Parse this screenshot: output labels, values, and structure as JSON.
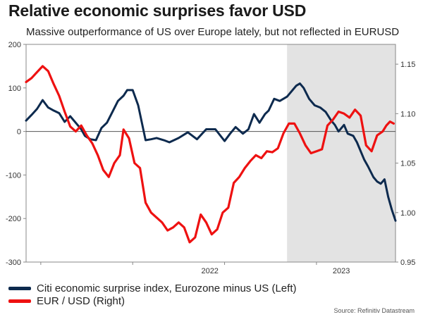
{
  "header": {
    "title": "Relative economic surprises favor USD",
    "subtitle": "Massive outperformance of US over Europe lately, but not reflected in EURUSD"
  },
  "source": "Source: Refinitiv Datastream",
  "legend": [
    {
      "label": "Citi economic surprise index, Eurozone minus US (Left)",
      "color": "#0d2a4e"
    },
    {
      "label": "EUR / USD (Right)",
      "color": "#ee1111"
    }
  ],
  "chart_data": {
    "type": "line",
    "title": "Relative economic surprises favor USD",
    "x_range": [
      2021.42,
      2023.43
    ],
    "x_ticks": [
      2022,
      2023
    ],
    "x_tick_labels": [
      "2022",
      "2023"
    ],
    "x_tick_marks": [
      2021.5,
      2022.0,
      2022.5,
      2023.0
    ],
    "shaded_region": {
      "from": 2022.84,
      "to": 2023.43,
      "color": "#e3e3e3"
    },
    "zero_line": {
      "axis": "left",
      "value": 0
    },
    "y_left": {
      "range": [
        -300,
        200
      ],
      "ticks": [
        -300,
        -200,
        -100,
        0,
        100,
        200
      ],
      "tick_labels": [
        "-300",
        "-200",
        "-100",
        "0",
        "100",
        "200"
      ]
    },
    "y_right": {
      "range": [
        0.95,
        1.17
      ],
      "ticks": [
        0.95,
        1.0,
        1.05,
        1.1,
        1.15
      ],
      "tick_labels": [
        "0.95",
        "1.00",
        "1.05",
        "1.10",
        "1.15"
      ]
    },
    "series": [
      {
        "name": "Citi economic surprise index, Eurozone minus US (Left)",
        "axis": "left",
        "color": "#0d2a4e",
        "x": [
          2021.42,
          2021.45,
          2021.48,
          2021.51,
          2021.54,
          2021.57,
          2021.6,
          2021.63,
          2021.66,
          2021.7,
          2021.72,
          2021.74,
          2021.77,
          2021.8,
          2021.83,
          2021.86,
          2021.89,
          2021.92,
          2021.95,
          2021.97,
          2022.0,
          2022.03,
          2022.07,
          2022.1,
          2022.13,
          2022.17,
          2022.2,
          2022.25,
          2022.3,
          2022.35,
          2022.4,
          2022.45,
          2022.5,
          2022.53,
          2022.56,
          2022.6,
          2022.63,
          2022.66,
          2022.69,
          2022.72,
          2022.74,
          2022.77,
          2022.8,
          2022.84,
          2022.87,
          2022.89,
          2022.91,
          2022.93,
          2022.96,
          2022.99,
          2023.02,
          2023.05,
          2023.08,
          2023.1,
          2023.12,
          2023.15,
          2023.17,
          2023.2,
          2023.22,
          2023.24,
          2023.26,
          2023.28,
          2023.31,
          2023.33,
          2023.35,
          2023.37,
          2023.39,
          2023.41,
          2023.43
        ],
        "y": [
          25,
          38,
          52,
          72,
          55,
          48,
          42,
          22,
          35,
          15,
          5,
          -10,
          -18,
          -20,
          8,
          20,
          45,
          70,
          82,
          95,
          95,
          60,
          -20,
          -18,
          -15,
          -20,
          -25,
          -15,
          -2,
          -18,
          5,
          5,
          -22,
          -5,
          10,
          -5,
          5,
          40,
          20,
          40,
          48,
          75,
          70,
          80,
          95,
          105,
          110,
          100,
          75,
          60,
          55,
          45,
          25,
          15,
          0,
          15,
          -5,
          -10,
          -25,
          -45,
          -65,
          -80,
          -105,
          -115,
          -120,
          -110,
          -150,
          -180,
          -205
        ]
      },
      {
        "name": "EUR / USD (Right)",
        "axis": "right",
        "color": "#ee1111",
        "x": [
          2021.42,
          2021.45,
          2021.48,
          2021.51,
          2021.54,
          2021.57,
          2021.6,
          2021.63,
          2021.66,
          2021.69,
          2021.72,
          2021.75,
          2021.78,
          2021.81,
          2021.84,
          2021.87,
          2021.9,
          2021.93,
          2021.95,
          2021.98,
          2022.01,
          2022.04,
          2022.07,
          2022.1,
          2022.13,
          2022.16,
          2022.19,
          2022.22,
          2022.25,
          2022.28,
          2022.31,
          2022.34,
          2022.37,
          2022.4,
          2022.43,
          2022.46,
          2022.49,
          2022.52,
          2022.55,
          2022.58,
          2022.61,
          2022.64,
          2022.67,
          2022.7,
          2022.73,
          2022.76,
          2022.79,
          2022.82,
          2022.85,
          2022.88,
          2022.91,
          2022.94,
          2022.97,
          2023.0,
          2023.03,
          2023.06,
          2023.09,
          2023.12,
          2023.15,
          2023.18,
          2023.21,
          2023.24,
          2023.27,
          2023.3,
          2023.33,
          2023.36,
          2023.38,
          2023.4,
          2023.42
        ],
        "y": [
          1.132,
          1.136,
          1.142,
          1.148,
          1.143,
          1.13,
          1.118,
          1.102,
          1.087,
          1.082,
          1.088,
          1.078,
          1.07,
          1.058,
          1.043,
          1.036,
          1.05,
          1.058,
          1.084,
          1.075,
          1.05,
          1.045,
          1.01,
          1.0,
          0.995,
          0.99,
          0.982,
          0.985,
          0.99,
          0.985,
          0.97,
          0.975,
          0.998,
          0.99,
          0.978,
          0.983,
          1.0,
          1.005,
          1.03,
          1.036,
          1.045,
          1.052,
          1.058,
          1.055,
          1.062,
          1.061,
          1.065,
          1.08,
          1.09,
          1.09,
          1.08,
          1.068,
          1.06,
          1.062,
          1.064,
          1.088,
          1.094,
          1.102,
          1.1,
          1.096,
          1.104,
          1.098,
          1.068,
          1.062,
          1.078,
          1.082,
          1.088,
          1.092,
          1.09
        ]
      }
    ]
  }
}
